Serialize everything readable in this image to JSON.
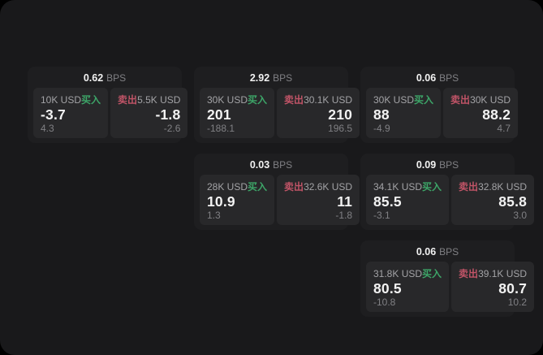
{
  "theme": {
    "bg_outer": "#000000",
    "bg_screen": "#19191b",
    "bg_card": "#1e1e20",
    "bg_panel": "#28282a",
    "text_primary": "#f2f2f2",
    "text_secondary": "#a3a3a6",
    "text_muted": "#808084",
    "buy_color": "#3da568",
    "sell_color": "#c15467"
  },
  "labels": {
    "bps": "BPS",
    "buy": "买入",
    "sell": "卖出"
  },
  "cards": [
    {
      "bps": "0.62",
      "buy": {
        "size": "10K USD",
        "price": "-3.7",
        "delta": "4.3"
      },
      "sell": {
        "size": "5.5K USD",
        "price": "-1.8",
        "delta": "-2.6"
      }
    },
    {
      "bps": "2.92",
      "buy": {
        "size": "30K USD",
        "price": "201",
        "delta": "-188.1"
      },
      "sell": {
        "size": "30.1K USD",
        "price": "210",
        "delta": "196.5"
      }
    },
    {
      "bps": "0.06",
      "buy": {
        "size": "30K USD",
        "price": "88",
        "delta": "-4.9"
      },
      "sell": {
        "size": "30K USD",
        "price": "88.2",
        "delta": "4.7"
      }
    },
    {
      "bps": "0.03",
      "buy": {
        "size": "28K USD",
        "price": "10.9",
        "delta": "1.3"
      },
      "sell": {
        "size": "32.6K USD",
        "price": "11",
        "delta": "-1.8"
      }
    },
    {
      "bps": "0.09",
      "buy": {
        "size": "34.1K USD",
        "price": "85.5",
        "delta": "-3.1"
      },
      "sell": {
        "size": "32.8K USD",
        "price": "85.8",
        "delta": "3.0"
      }
    },
    {
      "bps": "0.06",
      "buy": {
        "size": "31.8K USD",
        "price": "80.5",
        "delta": "-10.8"
      },
      "sell": {
        "size": "39.1K USD",
        "price": "80.7",
        "delta": "10.2"
      }
    }
  ]
}
